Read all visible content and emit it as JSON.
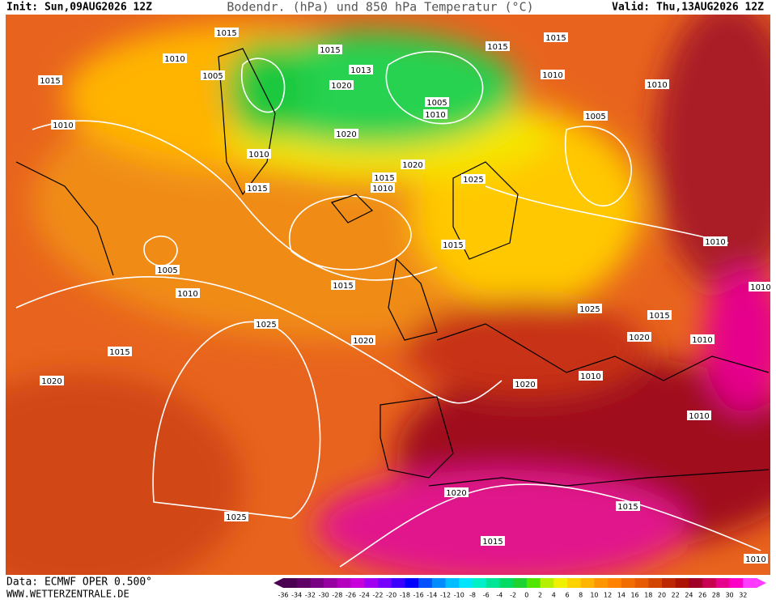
{
  "header": {
    "init": "Init: Sun,09AUG2026 12Z",
    "title": "Bodendr. (hPa) und 850 hPa Temperatur (°C)",
    "valid": "Valid: Thu,13AUG2026 12Z"
  },
  "footer": {
    "source": "Data: ECMWF OPER 0.500°",
    "site": "WWW.WETTERZENTRALE.DE"
  },
  "isobar_labels": [
    "1015",
    "1015",
    "1015",
    "1015",
    "1010",
    "1005",
    "1015",
    "1013",
    "1020",
    "1010",
    "1010",
    "1005",
    "1010",
    "1005",
    "1010",
    "1020",
    "1010",
    "1015",
    "1010",
    "1015",
    "1020",
    "1025",
    "1015",
    "1005",
    "1010",
    "1010",
    "1015",
    "1025",
    "1020",
    "1015",
    "1025",
    "1010",
    "1020",
    "1015",
    "1010",
    "1020",
    "1020",
    "1010",
    "1015",
    "1015",
    "1025",
    "1020",
    "1010",
    "1010"
  ],
  "colorbar": [
    {
      "value": -36,
      "color": "#4b0050"
    },
    {
      "value": -34,
      "color": "#5f0064"
    },
    {
      "value": -32,
      "color": "#780082"
    },
    {
      "value": -30,
      "color": "#9600a0"
    },
    {
      "value": -28,
      "color": "#b400be"
    },
    {
      "value": -26,
      "color": "#c800dc"
    },
    {
      "value": -24,
      "color": "#a000f0"
    },
    {
      "value": -22,
      "color": "#7800ff"
    },
    {
      "value": -20,
      "color": "#3c00ff"
    },
    {
      "value": -18,
      "color": "#0000ff"
    },
    {
      "value": -16,
      "color": "#0050ff"
    },
    {
      "value": -14,
      "color": "#008cff"
    },
    {
      "value": -12,
      "color": "#00beff"
    },
    {
      "value": -10,
      "color": "#00e6ff"
    },
    {
      "value": -8,
      "color": "#00f0c8"
    },
    {
      "value": -6,
      "color": "#00e696"
    },
    {
      "value": -4,
      "color": "#00dc64"
    },
    {
      "value": -2,
      "color": "#1ed232"
    },
    {
      "value": 0,
      "color": "#50e600"
    },
    {
      "value": 2,
      "color": "#b4f000"
    },
    {
      "value": 4,
      "color": "#f0f000"
    },
    {
      "value": 6,
      "color": "#ffd200"
    },
    {
      "value": 8,
      "color": "#ffb400"
    },
    {
      "value": 10,
      "color": "#ff9600"
    },
    {
      "value": 12,
      "color": "#ff8200"
    },
    {
      "value": 14,
      "color": "#f06e00"
    },
    {
      "value": 16,
      "color": "#e65a00"
    },
    {
      "value": 18,
      "color": "#d24600"
    },
    {
      "value": 20,
      "color": "#be2800"
    },
    {
      "value": 22,
      "color": "#aa1400"
    },
    {
      "value": 24,
      "color": "#a00028"
    },
    {
      "value": 26,
      "color": "#c80050"
    },
    {
      "value": 28,
      "color": "#e6008c"
    },
    {
      "value": 30,
      "color": "#ff00c8"
    },
    {
      "value": 32,
      "color": "#ff3cff"
    }
  ]
}
